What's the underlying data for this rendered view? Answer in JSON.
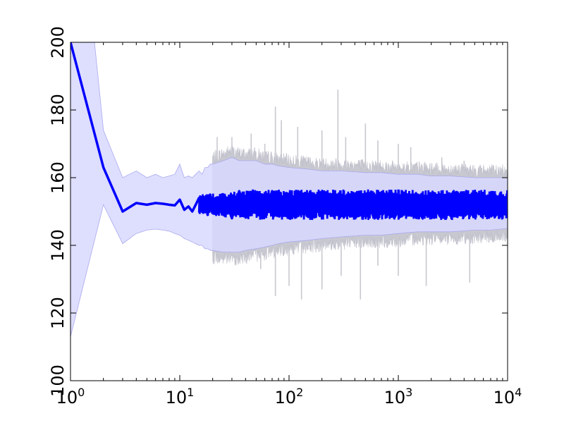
{
  "chart_data": {
    "type": "line",
    "title": "",
    "xlabel": "",
    "ylabel": "",
    "x_scale": "log",
    "xlim": [
      1,
      10000
    ],
    "ylim": [
      100,
      200
    ],
    "grid": false,
    "legend": "none",
    "x_ticks": [
      {
        "value": 1,
        "base": "10",
        "exp": "0"
      },
      {
        "value": 10,
        "base": "10",
        "exp": "1"
      },
      {
        "value": 100,
        "base": "10",
        "exp": "2"
      },
      {
        "value": 1000,
        "base": "10",
        "exp": "3"
      },
      {
        "value": 10000,
        "base": "10",
        "exp": "4"
      }
    ],
    "y_ticks": [
      {
        "value": 100,
        "label": "100"
      },
      {
        "value": 120,
        "label": "120"
      },
      {
        "value": 140,
        "label": "140"
      },
      {
        "value": 160,
        "label": "160"
      },
      {
        "value": 180,
        "label": "180"
      },
      {
        "value": 200,
        "label": "200"
      }
    ],
    "series": [
      {
        "kind": "mean-line",
        "color": "#0000ff",
        "x": [
          1,
          2,
          3,
          4,
          5,
          6,
          7,
          8,
          9,
          10,
          11,
          12,
          13,
          14,
          15,
          16,
          17,
          18,
          19,
          20,
          25,
          30,
          35,
          40,
          50,
          60,
          70,
          80,
          100,
          150,
          200,
          300,
          500,
          700,
          1000,
          1500,
          2000,
          3000,
          5000,
          7000,
          10000
        ],
        "y": [
          200,
          163,
          150,
          152.5,
          152,
          152.5,
          152.3,
          152,
          151.8,
          153.5,
          150.5,
          151.5,
          150,
          152,
          154,
          150,
          154,
          149,
          155,
          150,
          155,
          148,
          156,
          150,
          155,
          149,
          156,
          150,
          154,
          150,
          153,
          150,
          153,
          150,
          153,
          150,
          153,
          150,
          153,
          151,
          152
        ],
        "band": {
          "color": "#d8d8ff",
          "upper": [
            270,
            174,
            160,
            162,
            160,
            161,
            160,
            160.5,
            161,
            164,
            160,
            160.5,
            160,
            161,
            162,
            161,
            163,
            163,
            164,
            164,
            165,
            166,
            165,
            165,
            165,
            164,
            164,
            163.5,
            163,
            162.5,
            162,
            162,
            161.5,
            161.5,
            161,
            161,
            160.5,
            160.5,
            160,
            160,
            160
          ],
          "lower": [
            113,
            152,
            140.5,
            143.5,
            144.5,
            144.8,
            144.5,
            144.2,
            143.5,
            143,
            142,
            141.5,
            141,
            140.5,
            140,
            140,
            139,
            139,
            138.5,
            138.5,
            138,
            138,
            138,
            138.5,
            139,
            139.5,
            140,
            140.5,
            141,
            141.5,
            142,
            142.5,
            143,
            143,
            143.5,
            144,
            144,
            144,
            144.5,
            144.5,
            145
          ]
        }
      },
      {
        "kind": "envelope-spikes",
        "color": "#c8c8d0",
        "up_x": [
          22,
          30,
          45,
          60,
          75,
          85,
          120,
          200,
          280,
          330,
          500,
          650,
          1000,
          1300,
          2500,
          4000
        ],
        "up_y": [
          172,
          172,
          173,
          170,
          181,
          177,
          175,
          174,
          186,
          172,
          176,
          171,
          170,
          169,
          166,
          165
        ],
        "down_x": [
          55,
          75,
          100,
          130,
          200,
          300,
          450,
          650,
          1000,
          1800,
          4500
        ],
        "down_y": [
          133,
          125,
          128,
          124,
          127,
          131,
          124,
          134,
          131,
          128,
          129
        ]
      }
    ]
  }
}
